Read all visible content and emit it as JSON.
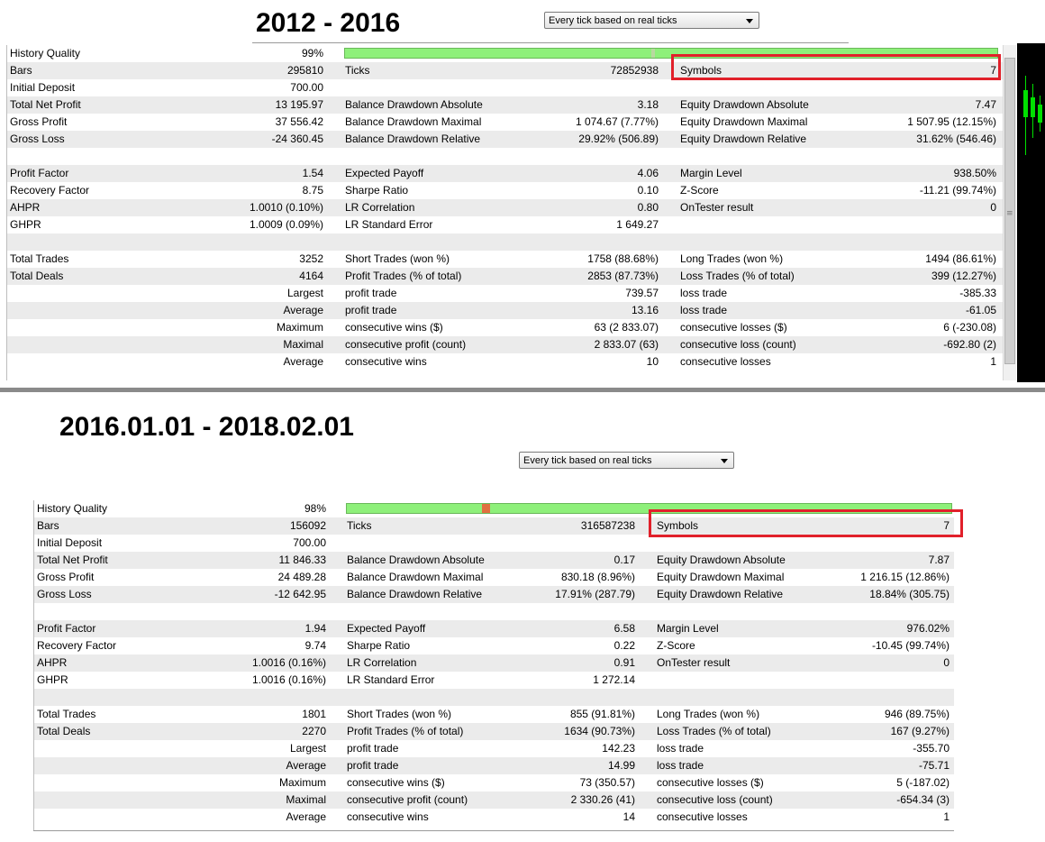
{
  "top": {
    "title": "2012 - 2016",
    "model_select": "Every tick based on real ticks",
    "history_quality": {
      "label": "History Quality",
      "value": "99%",
      "fill": 0.99
    },
    "rows": [
      [
        "Bars",
        "295810",
        "Ticks",
        "72852938",
        "Symbols",
        "7"
      ],
      [
        "Initial Deposit",
        "700.00",
        "",
        "",
        "",
        ""
      ],
      [
        "Total Net Profit",
        "13 195.97",
        "Balance Drawdown Absolute",
        "3.18",
        "Equity Drawdown Absolute",
        "7.47"
      ],
      [
        "Gross Profit",
        "37 556.42",
        "Balance Drawdown Maximal",
        "1 074.67 (7.77%)",
        "Equity Drawdown Maximal",
        "1 507.95 (12.15%)"
      ],
      [
        "Gross Loss",
        "-24 360.45",
        "Balance Drawdown Relative",
        "29.92% (506.89)",
        "Equity Drawdown Relative",
        "31.62% (546.46)"
      ],
      [
        "",
        "",
        "",
        "",
        "",
        ""
      ],
      [
        "Profit Factor",
        "1.54",
        "Expected Payoff",
        "4.06",
        "Margin Level",
        "938.50%"
      ],
      [
        "Recovery Factor",
        "8.75",
        "Sharpe Ratio",
        "0.10",
        "Z-Score",
        "-11.21 (99.74%)"
      ],
      [
        "AHPR",
        "1.0010 (0.10%)",
        "LR Correlation",
        "0.80",
        "OnTester result",
        "0"
      ],
      [
        "GHPR",
        "1.0009 (0.09%)",
        "LR Standard Error",
        "1 649.27",
        "",
        ""
      ],
      [
        "",
        "",
        "",
        "",
        "",
        ""
      ],
      [
        "Total Trades",
        "3252",
        "Short Trades (won %)",
        "1758 (88.68%)",
        "Long Trades (won %)",
        "1494 (86.61%)"
      ],
      [
        "Total Deals",
        "4164",
        "Profit Trades (% of total)",
        "2853 (87.73%)",
        "Loss Trades (% of total)",
        "399 (12.27%)"
      ],
      [
        "",
        "Largest",
        "profit trade",
        "739.57",
        "loss trade",
        "-385.33"
      ],
      [
        "",
        "Average",
        "profit trade",
        "13.16",
        "loss trade",
        "-61.05"
      ],
      [
        "",
        "Maximum",
        "consecutive wins ($)",
        "63 (2 833.07)",
        "consecutive losses ($)",
        "6 (-230.08)"
      ],
      [
        "",
        "Maximal",
        "consecutive profit (count)",
        "2 833.07 (63)",
        "consecutive loss (count)",
        "-692.80 (2)"
      ],
      [
        "",
        "Average",
        "consecutive wins",
        "10",
        "consecutive losses",
        "1"
      ]
    ]
  },
  "bottom": {
    "title": "2016.01.01  - 2018.02.01",
    "model_select": "Every tick based on real ticks",
    "history_quality": {
      "label": "History Quality",
      "value": "98%",
      "fill": 0.98
    },
    "rows": [
      [
        "Bars",
        "156092",
        "Ticks",
        "316587238",
        "Symbols",
        "7"
      ],
      [
        "Initial Deposit",
        "700.00",
        "",
        "",
        "",
        ""
      ],
      [
        "Total Net Profit",
        "11 846.33",
        "Balance Drawdown Absolute",
        "0.17",
        "Equity Drawdown Absolute",
        "7.87"
      ],
      [
        "Gross Profit",
        "24 489.28",
        "Balance Drawdown Maximal",
        "830.18 (8.96%)",
        "Equity Drawdown Maximal",
        "1 216.15 (12.86%)"
      ],
      [
        "Gross Loss",
        "-12 642.95",
        "Balance Drawdown Relative",
        "17.91% (287.79)",
        "Equity Drawdown Relative",
        "18.84% (305.75)"
      ],
      [
        "",
        "",
        "",
        "",
        "",
        ""
      ],
      [
        "Profit Factor",
        "1.94",
        "Expected Payoff",
        "6.58",
        "Margin Level",
        "976.02%"
      ],
      [
        "Recovery Factor",
        "9.74",
        "Sharpe Ratio",
        "0.22",
        "Z-Score",
        "-10.45 (99.74%)"
      ],
      [
        "AHPR",
        "1.0016 (0.16%)",
        "LR Correlation",
        "0.91",
        "OnTester result",
        "0"
      ],
      [
        "GHPR",
        "1.0016 (0.16%)",
        "LR Standard Error",
        "1 272.14",
        "",
        ""
      ],
      [
        "",
        "",
        "",
        "",
        "",
        ""
      ],
      [
        "Total Trades",
        "1801",
        "Short Trades (won %)",
        "855 (91.81%)",
        "Long Trades (won %)",
        "946 (89.75%)"
      ],
      [
        "Total Deals",
        "2270",
        "Profit Trades (% of total)",
        "1634 (90.73%)",
        "Loss Trades (% of total)",
        "167 (9.27%)"
      ],
      [
        "",
        "Largest",
        "profit trade",
        "142.23",
        "loss trade",
        "-355.70"
      ],
      [
        "",
        "Average",
        "profit trade",
        "14.99",
        "loss trade",
        "-75.71"
      ],
      [
        "",
        "Maximum",
        "consecutive wins ($)",
        "73 (350.57)",
        "consecutive losses ($)",
        "5 (-187.02)"
      ],
      [
        "",
        "Maximal",
        "consecutive profit (count)",
        "2 330.26 (41)",
        "consecutive loss (count)",
        "-654.34 (3)"
      ],
      [
        "",
        "Average",
        "consecutive wins",
        "14",
        "consecutive losses",
        "1"
      ]
    ]
  },
  "colors": {
    "quality_fill": "#8ef07a",
    "quality_mark": "#e07040",
    "highlight": "#e1202a",
    "shade": "#ebebeb"
  }
}
